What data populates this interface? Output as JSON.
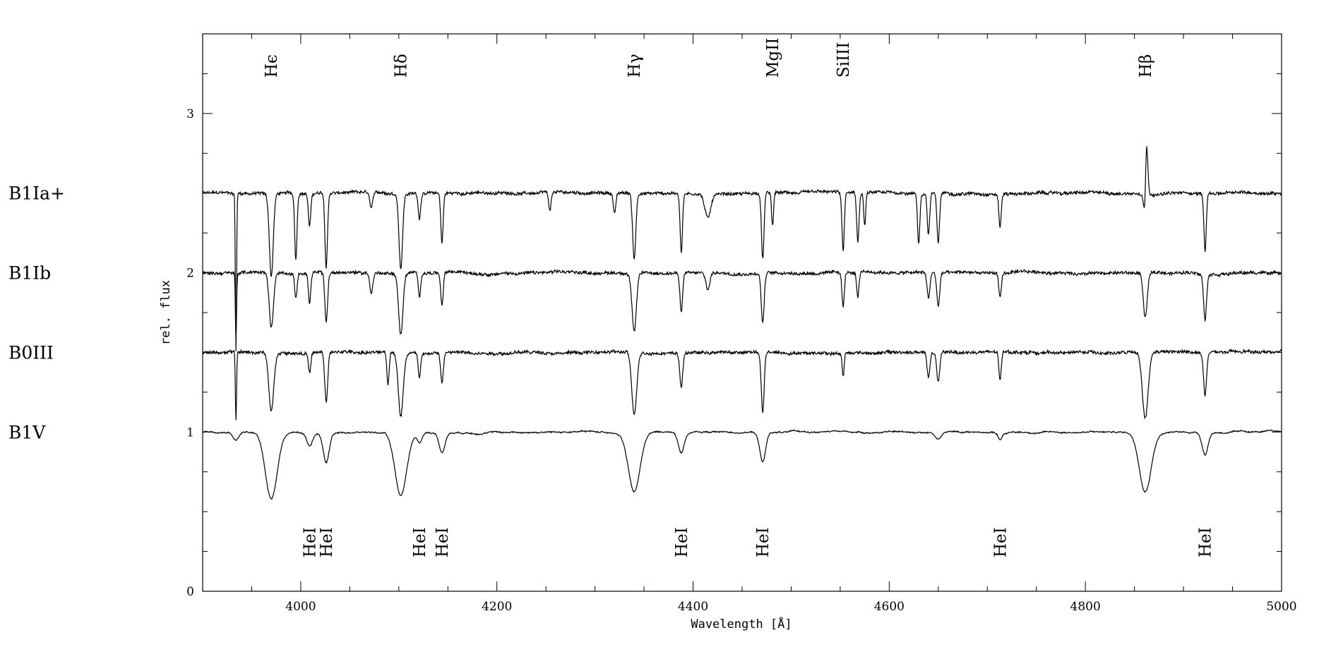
{
  "chart_data": {
    "type": "line",
    "xlabel": "Wavelength [Å]",
    "ylabel": "rel. flux",
    "xlim": [
      3900,
      5000
    ],
    "ylim": [
      0,
      3.5
    ],
    "x_ticks": [
      4000,
      4200,
      4400,
      4600,
      4800,
      5000
    ],
    "x_tick_labels": [
      "4000",
      "4200",
      "4400",
      "4600",
      "4800",
      "5000"
    ],
    "y_ticks": [
      0,
      1,
      2,
      3
    ],
    "y_tick_labels": [
      "0",
      "1",
      "2",
      "3"
    ],
    "grid": false,
    "top_line_labels": [
      {
        "text": "Hϵ",
        "x": 3970
      },
      {
        "text": "Hδ",
        "x": 4102
      },
      {
        "text": "Hγ",
        "x": 4340
      },
      {
        "text": "MgII",
        "x": 4481
      },
      {
        "text": "SiIII",
        "x": 4553
      },
      {
        "text": "Hβ",
        "x": 4861
      }
    ],
    "bottom_line_labels": [
      {
        "text": "HeI",
        "x": 4009
      },
      {
        "text": "HeI",
        "x": 4026
      },
      {
        "text": "HeI",
        "x": 4121
      },
      {
        "text": "HeI",
        "x": 4144
      },
      {
        "text": "HeI",
        "x": 4388
      },
      {
        "text": "HeI",
        "x": 4471
      },
      {
        "text": "HeI",
        "x": 4713
      },
      {
        "text": "HeI",
        "x": 4922
      }
    ],
    "series": [
      {
        "name": "B1Ia+",
        "label_y": 2.5,
        "continuum": 2.5,
        "lines": [
          {
            "x": 3934,
            "depth": 0.95,
            "width": 0.6
          },
          {
            "x": 3970,
            "depth": 0.5,
            "width": 2
          },
          {
            "x": 3995,
            "depth": 0.4,
            "width": 1.2
          },
          {
            "x": 4009,
            "depth": 0.2,
            "width": 1.2
          },
          {
            "x": 4026,
            "depth": 0.45,
            "width": 1.3
          },
          {
            "x": 4072,
            "depth": 0.1,
            "width": 1.5
          },
          {
            "x": 4102,
            "depth": 0.45,
            "width": 1.8
          },
          {
            "x": 4121,
            "depth": 0.15,
            "width": 1.2
          },
          {
            "x": 4144,
            "depth": 0.3,
            "width": 1.2
          },
          {
            "x": 4254,
            "depth": 0.12,
            "width": 1.2
          },
          {
            "x": 4320,
            "depth": 0.12,
            "width": 1.2
          },
          {
            "x": 4340,
            "depth": 0.4,
            "width": 1.6
          },
          {
            "x": 4388,
            "depth": 0.35,
            "width": 1.2
          },
          {
            "x": 4415,
            "depth": 0.15,
            "width": 3
          },
          {
            "x": 4471,
            "depth": 0.4,
            "width": 1.3
          },
          {
            "x": 4481,
            "depth": 0.2,
            "width": 1
          },
          {
            "x": 4553,
            "depth": 0.35,
            "width": 1.2
          },
          {
            "x": 4568,
            "depth": 0.3,
            "width": 1.2
          },
          {
            "x": 4575,
            "depth": 0.2,
            "width": 1
          },
          {
            "x": 4630,
            "depth": 0.3,
            "width": 1.2
          },
          {
            "x": 4640,
            "depth": 0.25,
            "width": 1.2
          },
          {
            "x": 4650,
            "depth": 0.3,
            "width": 1.3
          },
          {
            "x": 4713,
            "depth": 0.2,
            "width": 1.2
          },
          {
            "x": 4861,
            "depth": 0.3,
            "width": 1.2
          },
          {
            "x": 4922,
            "depth": 0.35,
            "width": 1.2
          }
        ],
        "emission": [
          {
            "x": 4862,
            "height": 0.47,
            "width": 1.3
          }
        ]
      },
      {
        "name": "B1Ib",
        "label_y": 2.0,
        "continuum": 2.0,
        "lines": [
          {
            "x": 3934,
            "depth": 0.4,
            "width": 0.6
          },
          {
            "x": 3970,
            "depth": 0.33,
            "width": 2.2
          },
          {
            "x": 3995,
            "depth": 0.15,
            "width": 1.2
          },
          {
            "x": 4009,
            "depth": 0.18,
            "width": 1.2
          },
          {
            "x": 4026,
            "depth": 0.3,
            "width": 1.4
          },
          {
            "x": 4072,
            "depth": 0.12,
            "width": 1.5
          },
          {
            "x": 4102,
            "depth": 0.37,
            "width": 2.2
          },
          {
            "x": 4121,
            "depth": 0.15,
            "width": 1.2
          },
          {
            "x": 4144,
            "depth": 0.2,
            "width": 1.3
          },
          {
            "x": 4340,
            "depth": 0.35,
            "width": 2.2
          },
          {
            "x": 4388,
            "depth": 0.23,
            "width": 1.4
          },
          {
            "x": 4415,
            "depth": 0.1,
            "width": 2
          },
          {
            "x": 4471,
            "depth": 0.3,
            "width": 1.5
          },
          {
            "x": 4553,
            "depth": 0.2,
            "width": 1.2
          },
          {
            "x": 4568,
            "depth": 0.15,
            "width": 1.2
          },
          {
            "x": 4640,
            "depth": 0.15,
            "width": 1.5
          },
          {
            "x": 4650,
            "depth": 0.2,
            "width": 1.5
          },
          {
            "x": 4713,
            "depth": 0.15,
            "width": 1.3
          },
          {
            "x": 4861,
            "depth": 0.27,
            "width": 2
          },
          {
            "x": 4922,
            "depth": 0.28,
            "width": 1.5
          }
        ]
      },
      {
        "name": "B0III",
        "label_y": 1.5,
        "continuum": 1.5,
        "lines": [
          {
            "x": 3934,
            "depth": 0.42,
            "width": 0.6
          },
          {
            "x": 3970,
            "depth": 0.36,
            "width": 2.5
          },
          {
            "x": 4009,
            "depth": 0.12,
            "width": 1.2
          },
          {
            "x": 4026,
            "depth": 0.3,
            "width": 1.5
          },
          {
            "x": 4089,
            "depth": 0.2,
            "width": 1.2
          },
          {
            "x": 4102,
            "depth": 0.38,
            "width": 2.5
          },
          {
            "x": 4121,
            "depth": 0.15,
            "width": 1.2
          },
          {
            "x": 4144,
            "depth": 0.18,
            "width": 1.4
          },
          {
            "x": 4340,
            "depth": 0.38,
            "width": 2.5
          },
          {
            "x": 4388,
            "depth": 0.2,
            "width": 1.5
          },
          {
            "x": 4471,
            "depth": 0.36,
            "width": 1.5
          },
          {
            "x": 4553,
            "depth": 0.14,
            "width": 1
          },
          {
            "x": 4640,
            "depth": 0.15,
            "width": 1.5
          },
          {
            "x": 4650,
            "depth": 0.18,
            "width": 1.5
          },
          {
            "x": 4713,
            "depth": 0.17,
            "width": 1.2
          },
          {
            "x": 4861,
            "depth": 0.4,
            "width": 3
          },
          {
            "x": 4922,
            "depth": 0.26,
            "width": 1.6
          }
        ]
      },
      {
        "name": "B1V",
        "label_y": 1.0,
        "continuum": 1.0,
        "lines": [
          {
            "x": 3934,
            "depth": 0.05,
            "width": 3
          },
          {
            "x": 3970,
            "depth": 0.4,
            "width": 6
          },
          {
            "x": 4009,
            "depth": 0.08,
            "width": 3
          },
          {
            "x": 4026,
            "depth": 0.18,
            "width": 3
          },
          {
            "x": 4102,
            "depth": 0.38,
            "width": 6
          },
          {
            "x": 4121,
            "depth": 0.06,
            "width": 2.5
          },
          {
            "x": 4144,
            "depth": 0.12,
            "width": 3
          },
          {
            "x": 4340,
            "depth": 0.36,
            "width": 6
          },
          {
            "x": 4388,
            "depth": 0.12,
            "width": 3
          },
          {
            "x": 4471,
            "depth": 0.18,
            "width": 3
          },
          {
            "x": 4650,
            "depth": 0.04,
            "width": 3
          },
          {
            "x": 4713,
            "depth": 0.04,
            "width": 2
          },
          {
            "x": 4861,
            "depth": 0.35,
            "width": 6
          },
          {
            "x": 4922,
            "depth": 0.13,
            "width": 3
          }
        ]
      }
    ]
  }
}
